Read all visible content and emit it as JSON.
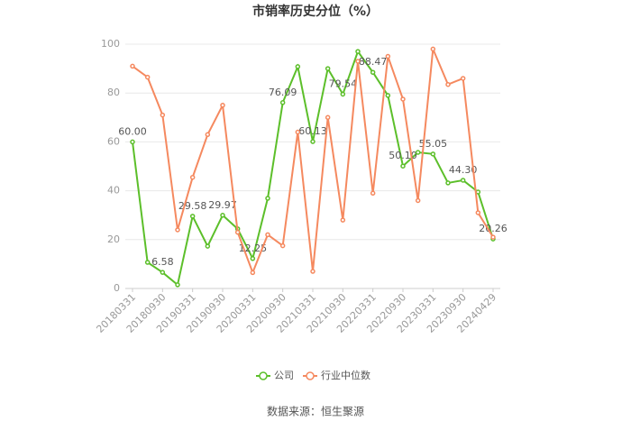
{
  "chart_data": {
    "type": "line",
    "title": "市销率历史分位（%）",
    "categories": [
      "20180331",
      null,
      "20180930",
      null,
      "20190331",
      null,
      "20190930",
      null,
      "20200331",
      null,
      "20200930",
      null,
      "20210331",
      null,
      "20210930",
      null,
      "20220331",
      null,
      "20220930",
      null,
      "20230331",
      null,
      "20230930",
      null,
      "20240429"
    ],
    "series": [
      {
        "name": "公司",
        "color": "#5cbf2a",
        "values": [
          60.0,
          10.7,
          6.58,
          1.5,
          29.58,
          17.3,
          29.97,
          24.4,
          12.25,
          36.9,
          76.09,
          90.8,
          60.13,
          90,
          79.54,
          97,
          88.47,
          79,
          50.1,
          55.7,
          55.05,
          43.2,
          44.3,
          39.5,
          20.26
        ],
        "value_labels": [
          "60.00",
          null,
          "6.58",
          null,
          "29.58",
          null,
          "29.97",
          null,
          "12.25",
          null,
          "76.09",
          null,
          "60.13",
          null,
          "79.54",
          null,
          "88.47",
          null,
          "50.10",
          null,
          "55.05",
          null,
          "44.30",
          null,
          "20.26"
        ]
      },
      {
        "name": "行业中位数",
        "color": "#f5895f",
        "values": [
          91,
          86.5,
          71,
          24,
          45.5,
          63,
          75,
          23,
          6.5,
          22,
          17.5,
          64,
          7,
          70,
          28,
          93,
          39,
          95,
          77.5,
          36,
          98,
          83.5,
          86,
          31,
          21
        ]
      }
    ],
    "ylim": [
      0,
      100
    ],
    "yticks": [
      0,
      20,
      40,
      60,
      80,
      100
    ],
    "grid": true,
    "legend": "bottom",
    "source": "数据来源：恒生聚源"
  }
}
